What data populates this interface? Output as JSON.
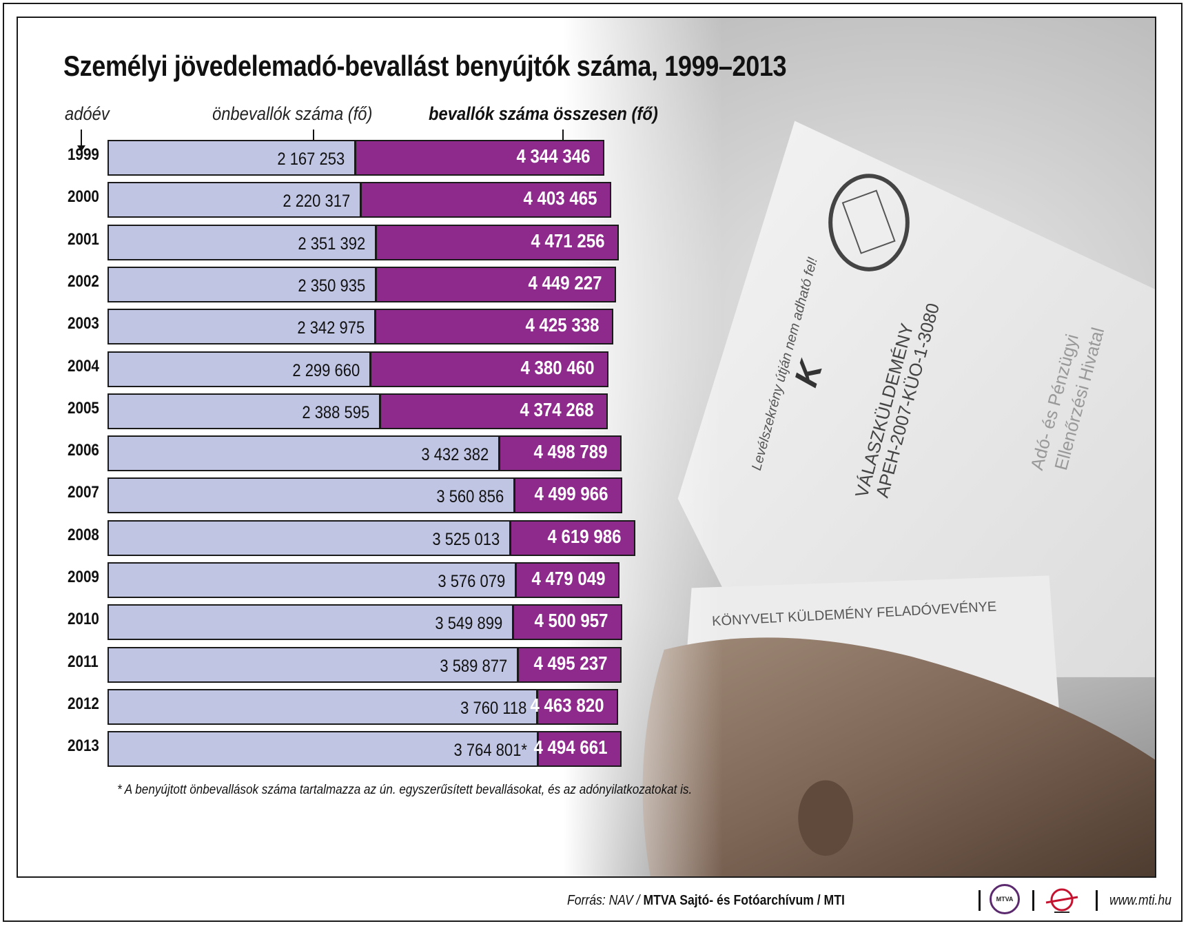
{
  "title": "Személyi jövedelemadó-bevallást benyújtók száma, 1999–2013",
  "column_headers": {
    "year": "adóév",
    "self_filers": "önbevallók száma (fő)",
    "total_filers": "bevallók száma összesen (fő)"
  },
  "footnote": "* A benyújtott önbevallások száma tartalmazza az ún. egyszerűsített bevallásokat, és az adónyilatkozatokat is.",
  "footer": {
    "source_prefix": "Forrás: NAV / ",
    "source_bold": "MTVA Sajtó- és Fotóarchívum / MTI",
    "website": "www.mti.hu",
    "mtva_logo_text": "MTVA"
  },
  "colors": {
    "self_bar": "#c0c5e3",
    "total_bar": "#8e2a8b"
  },
  "chart_data": {
    "type": "bar",
    "orientation": "horizontal",
    "categories": [
      "1999",
      "2000",
      "2001",
      "2002",
      "2003",
      "2004",
      "2005",
      "2006",
      "2007",
      "2008",
      "2009",
      "2010",
      "2011",
      "2012",
      "2013"
    ],
    "series": [
      {
        "name": "önbevallók száma (fő)",
        "values": [
          2167253,
          2220317,
          2351392,
          2350935,
          2342975,
          2299660,
          2388595,
          3432382,
          3560856,
          3525013,
          3576079,
          3549899,
          3589877,
          3760118,
          3764801
        ],
        "labels": [
          "2 167 253",
          "2 220 317",
          "2 351 392",
          "2 350 935",
          "2 342 975",
          "2 299 660",
          "2 388 595",
          "3 432 382",
          "3 560 856",
          "3 525 013",
          "3 576 079",
          "3 549 899",
          "3 589 877",
          "3 760 118",
          "3 764 801*"
        ]
      },
      {
        "name": "bevallók száma összesen (fő)",
        "values": [
          4344346,
          4403465,
          4471256,
          4449227,
          4425338,
          4380460,
          4374268,
          4498789,
          4499966,
          4619986,
          4479049,
          4500957,
          4495237,
          4463820,
          4494661
        ],
        "labels": [
          "4 344 346",
          "4 403 465",
          "4 471 256",
          "4 449 227",
          "4 425 338",
          "4 380 460",
          "4 374 268",
          "4 498 789",
          "4 499 966",
          "4 619 986",
          "4 479 049",
          "4 500 957",
          "4 495 237",
          "4 463 820",
          "4 494 661"
        ]
      }
    ]
  }
}
